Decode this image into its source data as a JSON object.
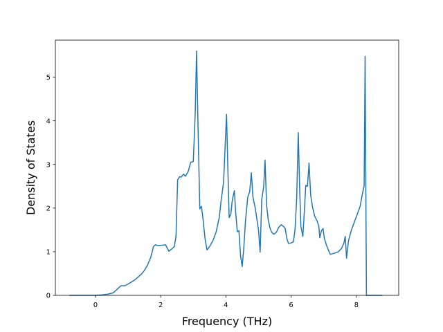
{
  "chart_data": {
    "type": "line",
    "title": "",
    "xlabel": "Frequency (THz)",
    "ylabel": "Density of States",
    "xlim": [
      -1.23,
      9.3
    ],
    "ylim": [
      0,
      5.85
    ],
    "xticks": [
      0,
      2,
      4,
      6,
      8
    ],
    "yticks": [
      0,
      1,
      2,
      3,
      4,
      5
    ],
    "grid": false,
    "legend": "none",
    "series": [
      {
        "color": "#1f77b4",
        "points": [
          [
            -0.8,
            0.0
          ],
          [
            0.0,
            0.0
          ],
          [
            0.2,
            0.01
          ],
          [
            0.4,
            0.03
          ],
          [
            0.55,
            0.06
          ],
          [
            0.65,
            0.13
          ],
          [
            0.78,
            0.22
          ],
          [
            0.9,
            0.22
          ],
          [
            1.0,
            0.26
          ],
          [
            1.2,
            0.35
          ],
          [
            1.4,
            0.48
          ],
          [
            1.5,
            0.57
          ],
          [
            1.6,
            0.7
          ],
          [
            1.7,
            0.88
          ],
          [
            1.78,
            1.12
          ],
          [
            1.84,
            1.16
          ],
          [
            1.9,
            1.14
          ],
          [
            2.05,
            1.15
          ],
          [
            2.15,
            1.16
          ],
          [
            2.25,
            1.01
          ],
          [
            2.35,
            1.07
          ],
          [
            2.42,
            1.12
          ],
          [
            2.47,
            1.36
          ],
          [
            2.52,
            2.65
          ],
          [
            2.58,
            2.72
          ],
          [
            2.63,
            2.71
          ],
          [
            2.7,
            2.78
          ],
          [
            2.76,
            2.73
          ],
          [
            2.85,
            2.85
          ],
          [
            2.92,
            3.05
          ],
          [
            2.97,
            3.06
          ],
          [
            3.0,
            3.07
          ],
          [
            3.06,
            4.2
          ],
          [
            3.1,
            5.6
          ],
          [
            3.15,
            3.7
          ],
          [
            3.2,
            1.98
          ],
          [
            3.25,
            2.04
          ],
          [
            3.3,
            1.74
          ],
          [
            3.36,
            1.3
          ],
          [
            3.42,
            1.04
          ],
          [
            3.5,
            1.12
          ],
          [
            3.6,
            1.25
          ],
          [
            3.7,
            1.45
          ],
          [
            3.8,
            1.8
          ],
          [
            3.85,
            2.15
          ],
          [
            3.93,
            2.6
          ],
          [
            3.97,
            3.3
          ],
          [
            4.02,
            4.15
          ],
          [
            4.06,
            2.9
          ],
          [
            4.1,
            1.78
          ],
          [
            4.15,
            1.86
          ],
          [
            4.2,
            2.2
          ],
          [
            4.26,
            2.4
          ],
          [
            4.3,
            1.9
          ],
          [
            4.35,
            1.46
          ],
          [
            4.4,
            1.48
          ],
          [
            4.45,
            0.9
          ],
          [
            4.5,
            0.66
          ],
          [
            4.55,
            1.1
          ],
          [
            4.6,
            1.7
          ],
          [
            4.67,
            2.25
          ],
          [
            4.73,
            2.38
          ],
          [
            4.78,
            2.81
          ],
          [
            4.83,
            2.25
          ],
          [
            4.9,
            2.0
          ],
          [
            4.95,
            1.75
          ],
          [
            5.0,
            1.5
          ],
          [
            5.05,
            0.99
          ],
          [
            5.1,
            2.2
          ],
          [
            5.16,
            2.5
          ],
          [
            5.2,
            3.1
          ],
          [
            5.25,
            2.05
          ],
          [
            5.3,
            1.73
          ],
          [
            5.35,
            1.55
          ],
          [
            5.4,
            1.45
          ],
          [
            5.47,
            1.4
          ],
          [
            5.55,
            1.45
          ],
          [
            5.62,
            1.56
          ],
          [
            5.7,
            1.62
          ],
          [
            5.78,
            1.57
          ],
          [
            5.82,
            1.53
          ],
          [
            5.87,
            1.3
          ],
          [
            5.92,
            1.19
          ],
          [
            6.0,
            1.2
          ],
          [
            6.07,
            1.23
          ],
          [
            6.12,
            1.5
          ],
          [
            6.17,
            2.2
          ],
          [
            6.22,
            3.73
          ],
          [
            6.26,
            2.5
          ],
          [
            6.3,
            1.58
          ],
          [
            6.36,
            1.35
          ],
          [
            6.4,
            1.85
          ],
          [
            6.45,
            2.52
          ],
          [
            6.5,
            2.5
          ],
          [
            6.55,
            3.03
          ],
          [
            6.6,
            2.3
          ],
          [
            6.65,
            2.05
          ],
          [
            6.72,
            1.82
          ],
          [
            6.8,
            1.7
          ],
          [
            6.85,
            1.58
          ],
          [
            6.88,
            1.32
          ],
          [
            6.93,
            1.48
          ],
          [
            6.98,
            1.53
          ],
          [
            7.02,
            1.3
          ],
          [
            7.1,
            1.12
          ],
          [
            7.2,
            0.94
          ],
          [
            7.35,
            0.97
          ],
          [
            7.45,
            1.0
          ],
          [
            7.55,
            1.08
          ],
          [
            7.62,
            1.2
          ],
          [
            7.66,
            1.35
          ],
          [
            7.7,
            0.85
          ],
          [
            7.76,
            1.25
          ],
          [
            7.85,
            1.5
          ],
          [
            7.95,
            1.7
          ],
          [
            8.05,
            1.9
          ],
          [
            8.12,
            2.05
          ],
          [
            8.18,
            2.3
          ],
          [
            8.24,
            2.52
          ],
          [
            8.27,
            5.48
          ],
          [
            8.31,
            0.0
          ],
          [
            8.5,
            0.0
          ],
          [
            8.8,
            0.0
          ]
        ]
      }
    ]
  }
}
